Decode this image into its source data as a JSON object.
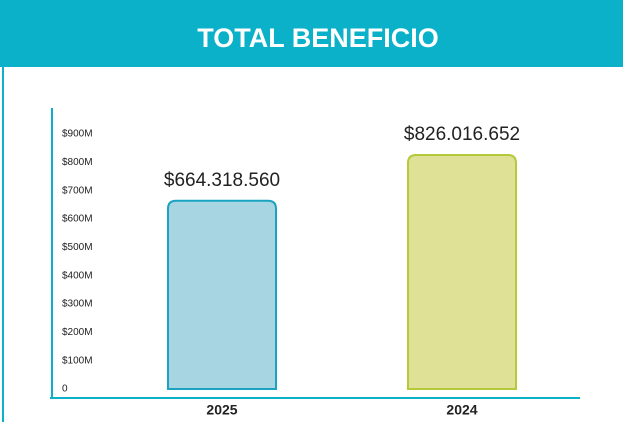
{
  "chart_data": {
    "type": "bar",
    "title": "TOTAL BENEFICIO",
    "categories": [
      "2025",
      "2024"
    ],
    "values": [
      664318560,
      826016652
    ],
    "value_labels": [
      "$664.318.560",
      "$826.016.652"
    ],
    "colors": [
      "#a8d5e2",
      "#dfe197"
    ],
    "edge_colors": [
      "#1ba3c1",
      "#b5c93a"
    ],
    "ylim": [
      0,
      900000000
    ],
    "yticks": [
      0,
      {
        "value": 100000000,
        "label": "$100M"
      },
      {
        "value": 200000000,
        "label": "$200M"
      },
      {
        "value": 300000000,
        "label": "$300M"
      },
      {
        "value": 400000000,
        "label": "$400M"
      },
      {
        "value": 500000000,
        "label": "$500M"
      },
      {
        "value": 600000000,
        "label": "$600M"
      },
      {
        "value": 700000000,
        "label": "$700M"
      },
      {
        "value": 800000000,
        "label": "$800M"
      },
      {
        "value": 900000000,
        "label": "$900M"
      }
    ]
  }
}
